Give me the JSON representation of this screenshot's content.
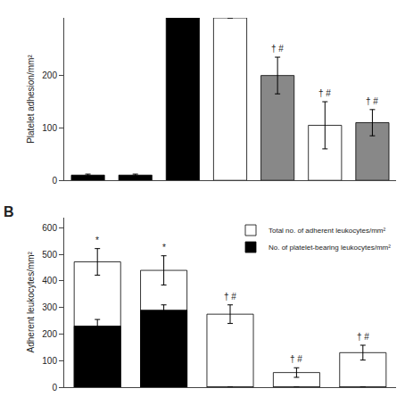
{
  "chart_data": [
    {
      "type": "bar",
      "ylabel": "Platelet adhesion/mm²",
      "categories": [
        null,
        null,
        null,
        null,
        null,
        null,
        null
      ],
      "values": [
        10,
        10,
        310,
        310,
        200,
        105,
        110
      ],
      "errors": [
        2,
        2,
        0,
        0,
        35,
        45,
        25
      ],
      "colors": [
        "black",
        "black",
        "black",
        "white",
        "#888888",
        "white",
        "#888888"
      ],
      "annotations": [
        null,
        null,
        null,
        null,
        "† #",
        "† #",
        "† #"
      ],
      "ylim": [
        0,
        310
      ],
      "yticks": [
        0,
        100,
        200
      ],
      "grid": false,
      "tick_labels": "y"
    },
    {
      "type": "bar",
      "title": "B",
      "ylabel": "Adherent leukocytes/mm²",
      "categories": [
        null,
        null,
        null,
        null,
        null
      ],
      "series": [
        {
          "name": "Total no. of adherent leukocytes/mm²",
          "color": "white",
          "values": [
            472,
            440,
            275,
            55,
            130
          ],
          "errors": [
            50,
            55,
            35,
            18,
            28
          ]
        },
        {
          "name": "No. of platelet-bearing leukocytes/mm²",
          "color": "black",
          "values": [
            230,
            290,
            0,
            0,
            0
          ],
          "errors": [
            25,
            20,
            0,
            0,
            0
          ]
        }
      ],
      "annotations": [
        "*",
        "*",
        "† #",
        "† #",
        "† #"
      ],
      "ylim": [
        0,
        640
      ],
      "yticks": [
        0,
        100,
        200,
        300,
        400,
        500,
        600
      ],
      "grid": false,
      "stacked": false,
      "legend": "upper right",
      "tick_labels": "y"
    }
  ]
}
